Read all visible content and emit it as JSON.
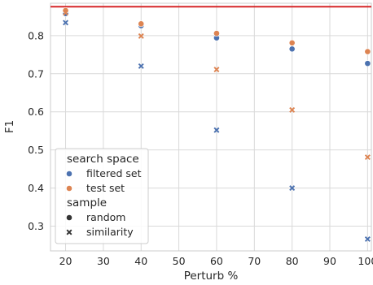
{
  "chart_data": {
    "type": "scatter",
    "xlabel": "Perturb %",
    "ylabel": "F1",
    "xlim": [
      16,
      101
    ],
    "ylim": [
      0.235,
      0.885
    ],
    "x_ticks": [
      20,
      30,
      40,
      50,
      60,
      70,
      80,
      90,
      100
    ],
    "y_ticks": [
      0.3,
      0.4,
      0.5,
      0.6,
      0.7,
      0.8
    ],
    "y_tick_labels": [
      "0.3",
      "0.4",
      "0.5",
      "0.6",
      "0.7",
      "0.8"
    ],
    "grid": true,
    "reference_line": {
      "y": 0.876,
      "color": "#d62728"
    },
    "series": [
      {
        "name": "filtered set",
        "sample": "random",
        "color": "#4c72b0",
        "marker": "circle",
        "x": [
          20,
          40,
          60,
          80,
          100
        ],
        "y": [
          0.858,
          0.826,
          0.794,
          0.765,
          0.727
        ]
      },
      {
        "name": "test set",
        "sample": "random",
        "color": "#dd8452",
        "marker": "circle",
        "x": [
          20,
          40,
          60,
          80,
          100
        ],
        "y": [
          0.866,
          0.831,
          0.806,
          0.781,
          0.758
        ]
      },
      {
        "name": "filtered set",
        "sample": "similarity",
        "color": "#4c72b0",
        "marker": "x",
        "x": [
          20,
          40,
          60,
          80,
          100
        ],
        "y": [
          0.834,
          0.72,
          0.552,
          0.4,
          0.266
        ]
      },
      {
        "name": "test set",
        "sample": "similarity",
        "color": "#dd8452",
        "marker": "x",
        "x": [
          20,
          40,
          60,
          80,
          100
        ],
        "y": [
          0.86,
          0.799,
          0.711,
          0.605,
          0.481
        ]
      }
    ],
    "legend": {
      "placement": "lower-left",
      "sections": [
        {
          "title": "search space",
          "entries": [
            {
              "label": "filtered set",
              "color": "#4c72b0",
              "marker": "circle"
            },
            {
              "label": "test set",
              "color": "#dd8452",
              "marker": "circle"
            }
          ]
        },
        {
          "title": "sample",
          "entries": [
            {
              "label": "random",
              "color": "#333333",
              "marker": "circle"
            },
            {
              "label": "similarity",
              "color": "#333333",
              "marker": "x"
            }
          ]
        }
      ]
    }
  }
}
